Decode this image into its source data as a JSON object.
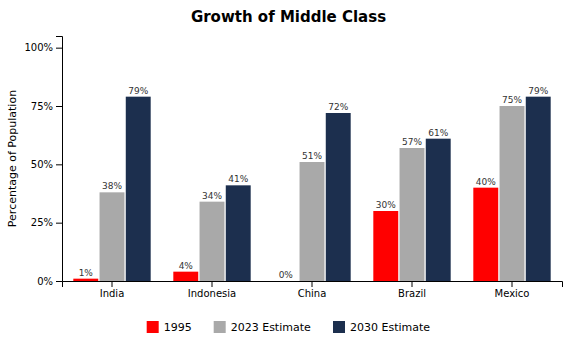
{
  "chart_data": {
    "type": "bar",
    "title": "Growth of Middle Class",
    "ylabel": "Percentage of Population",
    "categories": [
      "India",
      "Indonesia",
      "China",
      "Brazil",
      "Mexico"
    ],
    "series": [
      {
        "name": "1995",
        "color": "#FF0000",
        "values": [
          1,
          4,
          0,
          30,
          40
        ],
        "value_labels": [
          "1%",
          "4%",
          "0%",
          "30%",
          "40%"
        ]
      },
      {
        "name": "2023 Estimate",
        "color": "#A9A9A9",
        "values": [
          38,
          34,
          51,
          57,
          75
        ],
        "value_labels": [
          "38%",
          "34%",
          "51%",
          "57%",
          "75%"
        ]
      },
      {
        "name": "2030 Estimate",
        "color": "#1C2F4E",
        "values": [
          79,
          41,
          72,
          61,
          79
        ],
        "value_labels": [
          "79%",
          "41%",
          "72%",
          "61%",
          "79%"
        ]
      }
    ],
    "ylim": [
      0,
      105
    ],
    "yticks": [
      {
        "value": 0,
        "label": "0%"
      },
      {
        "value": 25,
        "label": "25%"
      },
      {
        "value": 50,
        "label": "50%"
      },
      {
        "value": 75,
        "label": "75%"
      },
      {
        "value": 100,
        "label": "100%"
      }
    ],
    "grid": false,
    "legend": "bottom",
    "data_labels": true
  }
}
